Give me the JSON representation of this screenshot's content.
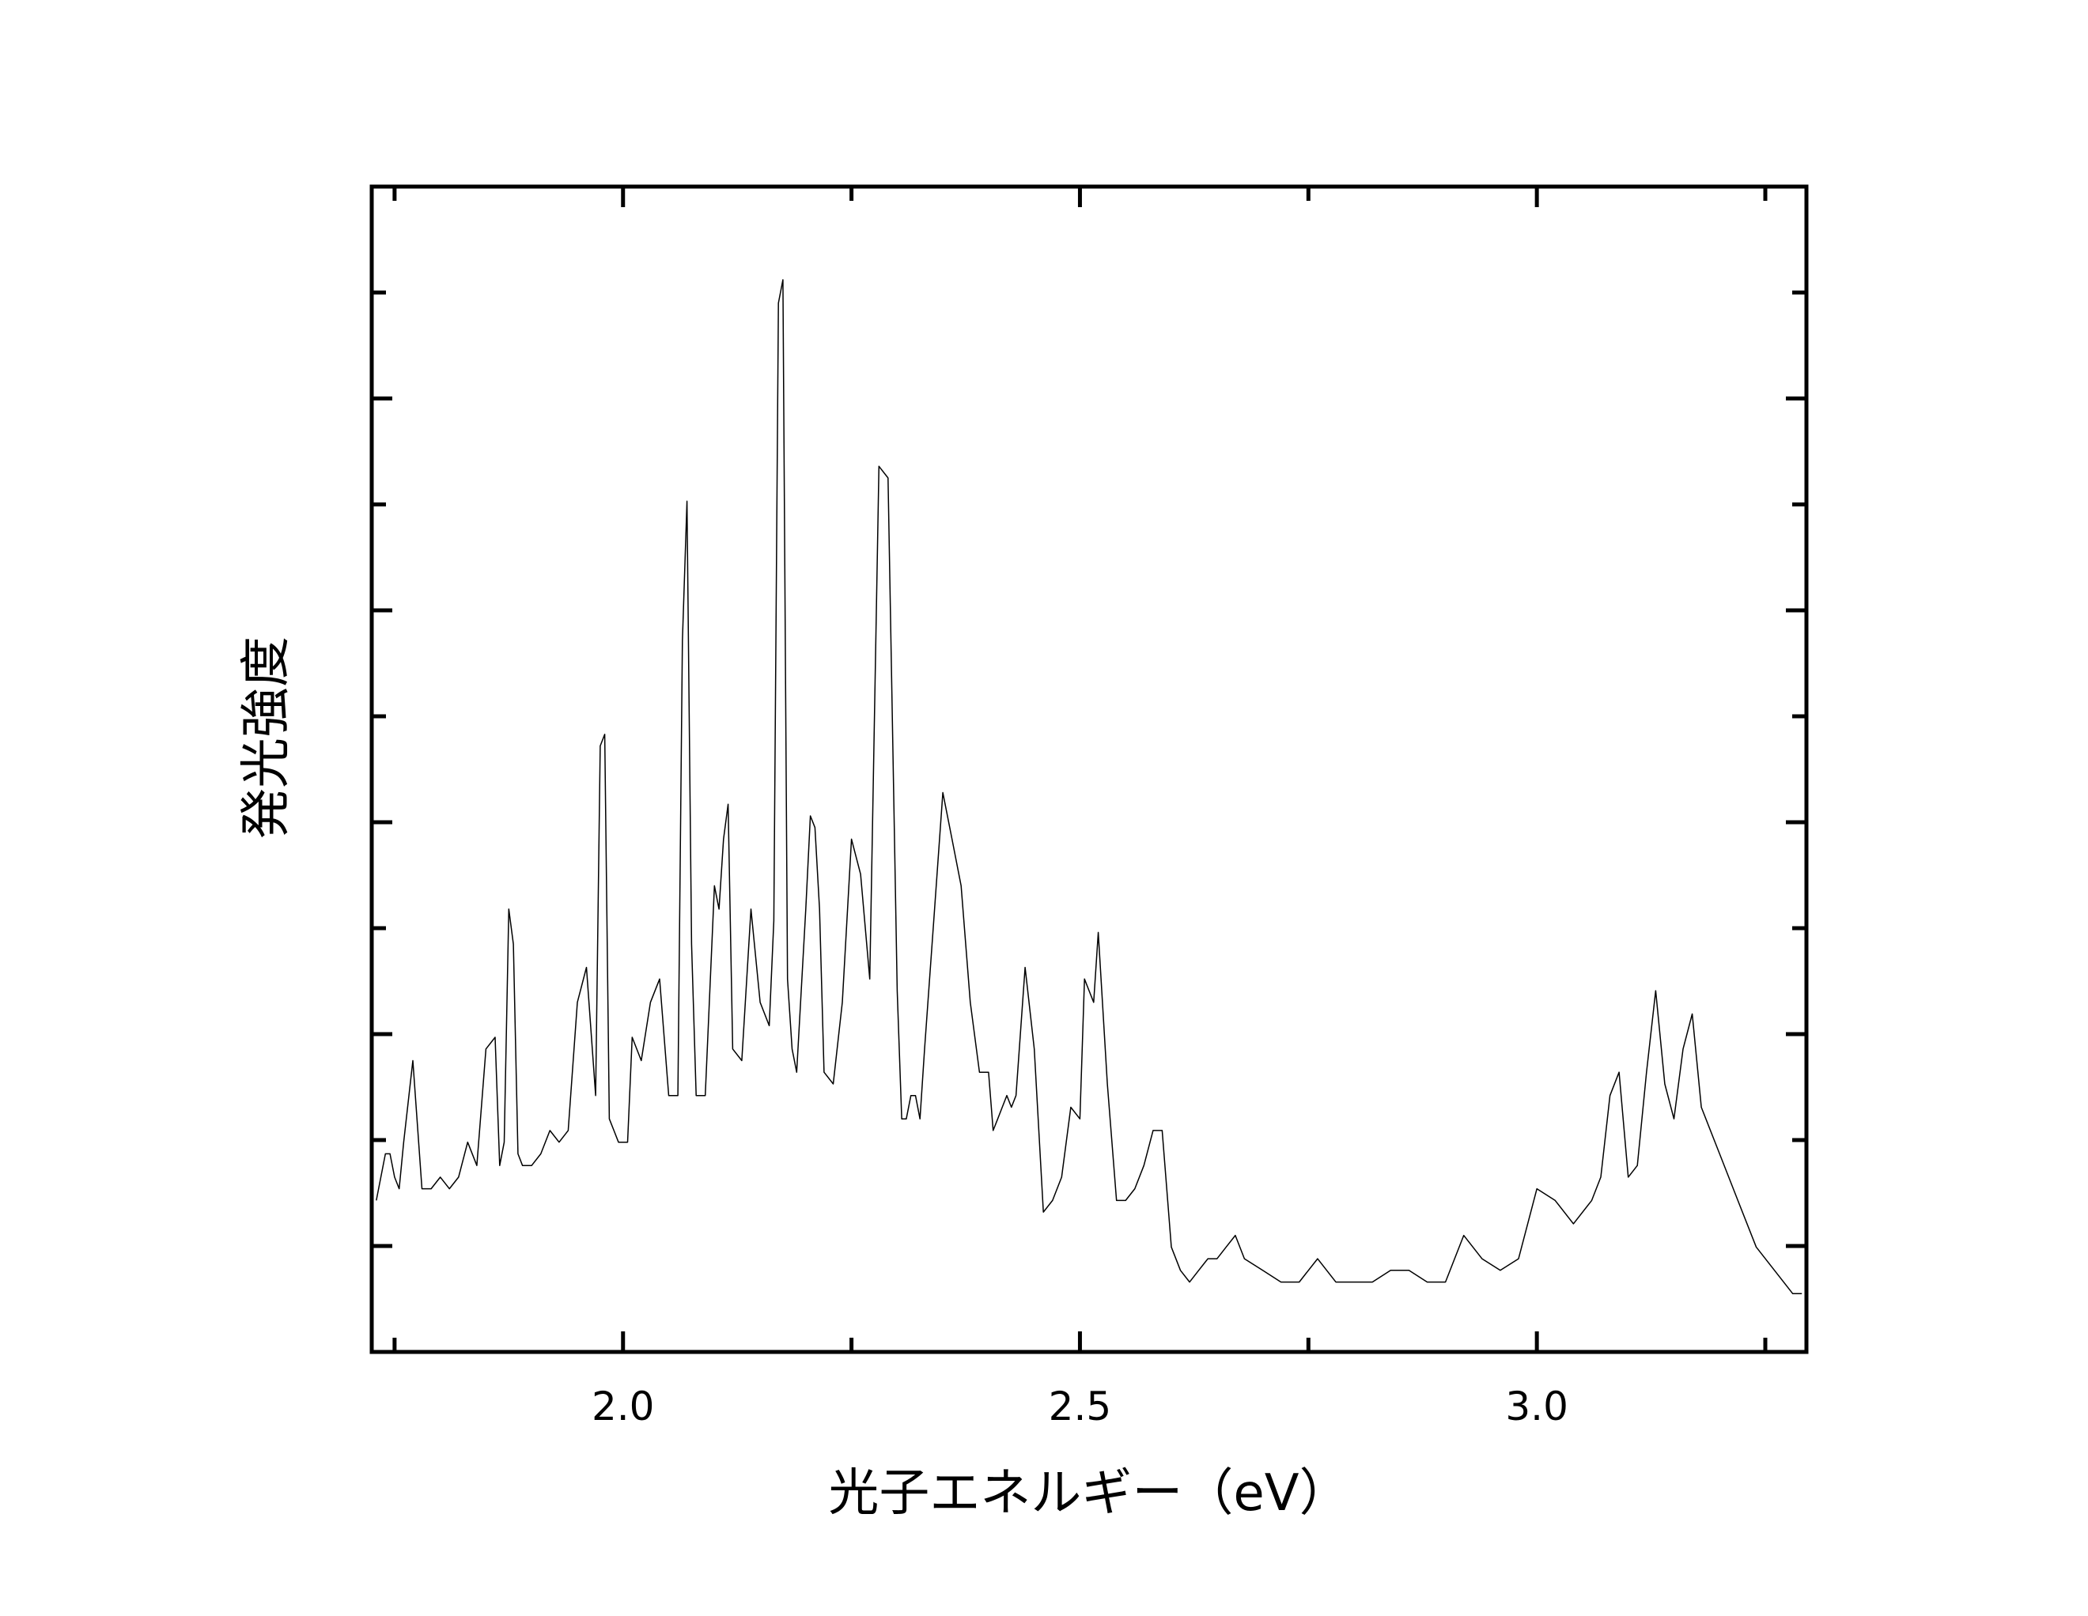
{
  "chart_data": {
    "type": "line",
    "title": "",
    "xlabel": "光子エネルギー（eV）",
    "ylabel": "発光強度",
    "xlim": [
      1.725,
      3.295
    ],
    "ylim": [
      0,
      1.0
    ],
    "x_ticks": [
      2.0,
      2.5,
      3.0
    ],
    "x_tick_labels": [
      "2.0",
      "2.5",
      "3.0"
    ],
    "x_minor_ticks": [
      1.75,
      2.25,
      2.75,
      3.25
    ],
    "y_tick_labels_shown": false,
    "grid": false,
    "legend": "none",
    "line_color": "#000000",
    "series": [
      {
        "x": [
          1.73,
          1.74,
          1.745,
          1.75,
          1.755,
          1.76,
          1.77,
          1.78,
          1.785,
          1.79,
          1.8,
          1.81,
          1.82,
          1.83,
          1.84,
          1.85,
          1.86,
          1.865,
          1.87,
          1.875,
          1.88,
          1.885,
          1.89,
          1.895,
          1.9,
          1.91,
          1.92,
          1.93,
          1.94,
          1.95,
          1.96,
          1.97,
          1.975,
          1.98,
          1.985,
          1.99,
          1.995,
          2.0,
          2.005,
          2.01,
          2.02,
          2.03,
          2.04,
          2.05,
          2.06,
          2.065,
          2.07,
          2.075,
          2.08,
          2.085,
          2.09,
          2.1,
          2.105,
          2.11,
          2.115,
          2.12,
          2.13,
          2.14,
          2.15,
          2.16,
          2.165,
          2.17,
          2.175,
          2.18,
          2.185,
          2.19,
          2.2,
          2.205,
          2.21,
          2.215,
          2.22,
          2.23,
          2.24,
          2.25,
          2.26,
          2.27,
          2.28,
          2.29,
          2.3,
          2.305,
          2.31,
          2.315,
          2.32,
          2.325,
          2.33,
          2.34,
          2.35,
          2.36,
          2.37,
          2.38,
          2.39,
          2.4,
          2.405,
          2.41,
          2.415,
          2.42,
          2.425,
          2.43,
          2.44,
          2.45,
          2.46,
          2.47,
          2.48,
          2.49,
          2.5,
          2.505,
          2.51,
          2.515,
          2.52,
          2.53,
          2.54,
          2.55,
          2.56,
          2.57,
          2.58,
          2.59,
          2.6,
          2.61,
          2.62,
          2.63,
          2.64,
          2.65,
          2.66,
          2.67,
          2.68,
          2.7,
          2.72,
          2.74,
          2.76,
          2.78,
          2.8,
          2.82,
          2.84,
          2.86,
          2.88,
          2.9,
          2.92,
          2.94,
          2.96,
          2.98,
          3.0,
          3.02,
          3.04,
          3.06,
          3.07,
          3.08,
          3.09,
          3.1,
          3.11,
          3.12,
          3.13,
          3.14,
          3.15,
          3.16,
          3.17,
          3.18,
          3.2,
          3.22,
          3.24,
          3.26,
          3.28,
          3.29
        ],
        "y": [
          0.13,
          0.17,
          0.17,
          0.15,
          0.14,
          0.18,
          0.25,
          0.14,
          0.14,
          0.14,
          0.15,
          0.14,
          0.15,
          0.18,
          0.16,
          0.26,
          0.27,
          0.16,
          0.18,
          0.38,
          0.35,
          0.17,
          0.16,
          0.16,
          0.16,
          0.17,
          0.19,
          0.18,
          0.19,
          0.3,
          0.33,
          0.22,
          0.52,
          0.53,
          0.2,
          0.19,
          0.18,
          0.18,
          0.18,
          0.27,
          0.25,
          0.3,
          0.32,
          0.22,
          0.22,
          0.61,
          0.73,
          0.35,
          0.22,
          0.22,
          0.22,
          0.4,
          0.38,
          0.44,
          0.47,
          0.26,
          0.25,
          0.38,
          0.3,
          0.28,
          0.37,
          0.9,
          0.92,
          0.32,
          0.26,
          0.24,
          0.38,
          0.46,
          0.45,
          0.38,
          0.24,
          0.23,
          0.3,
          0.44,
          0.41,
          0.32,
          0.76,
          0.75,
          0.31,
          0.2,
          0.2,
          0.22,
          0.22,
          0.2,
          0.26,
          0.37,
          0.48,
          0.44,
          0.4,
          0.3,
          0.24,
          0.24,
          0.19,
          0.2,
          0.21,
          0.22,
          0.21,
          0.22,
          0.33,
          0.26,
          0.12,
          0.13,
          0.15,
          0.21,
          0.2,
          0.32,
          0.31,
          0.3,
          0.36,
          0.23,
          0.13,
          0.13,
          0.14,
          0.16,
          0.19,
          0.19,
          0.09,
          0.07,
          0.06,
          0.07,
          0.08,
          0.08,
          0.09,
          0.1,
          0.08,
          0.07,
          0.06,
          0.06,
          0.08,
          0.06,
          0.06,
          0.06,
          0.07,
          0.07,
          0.06,
          0.06,
          0.1,
          0.08,
          0.07,
          0.08,
          0.14,
          0.13,
          0.11,
          0.13,
          0.15,
          0.22,
          0.24,
          0.15,
          0.16,
          0.24,
          0.31,
          0.23,
          0.2,
          0.26,
          0.29,
          0.21,
          0.17,
          0.13,
          0.09,
          0.07,
          0.05,
          0.05
        ]
      }
    ]
  }
}
